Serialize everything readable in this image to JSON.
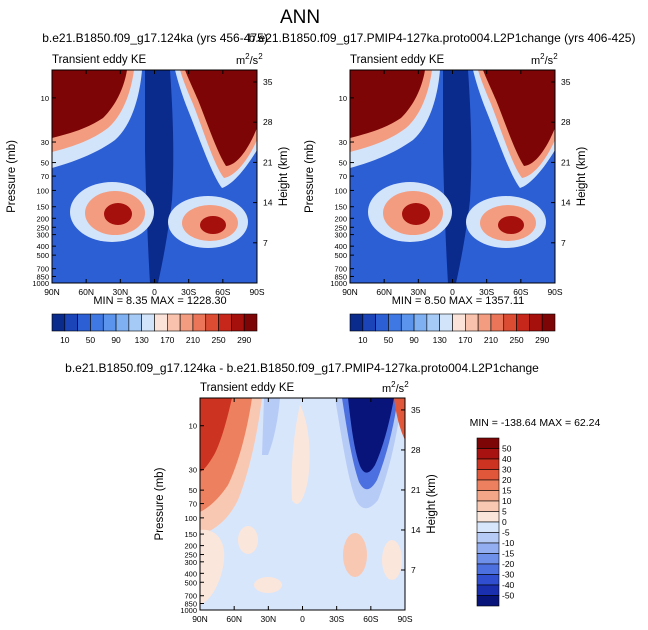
{
  "figure": {
    "title": "ANN",
    "lat_ticks": [
      "90N",
      "60N",
      "30N",
      "0",
      "30S",
      "60S",
      "90S"
    ],
    "pressure_ticks": [
      "10",
      "30",
      "50",
      "70",
      "100",
      "150",
      "200",
      "250",
      "300",
      "400",
      "500",
      "700",
      "850",
      "1000"
    ],
    "height_ticks": [
      "35",
      "28",
      "21",
      "14",
      "7"
    ],
    "pressure_axis_label": "Pressure (mb)",
    "height_axis_label": "Height (km)",
    "variable_label": "Transient eddy KE",
    "units_base": "m",
    "units_sup": "2",
    "units_slash": "/s",
    "units_sup2": "2"
  },
  "chart_data": [
    {
      "type": "heatmap",
      "id": "panel-a",
      "title": "b.e21.B1850.f09_g17.124ka (yrs 456-475)",
      "subtitle_left": "Transient eddy KE",
      "units": "m2/s2",
      "xlabel": "",
      "ylabel": "Pressure (mb)",
      "ylabel_right": "Height (km)",
      "x_range": [
        "90N",
        "90S"
      ],
      "y_range_mb": [
        1000,
        5
      ],
      "min_label": "MIN = 8.35  MAX = 1228.30",
      "colorbar_levels": [
        10,
        30,
        50,
        70,
        90,
        110,
        130,
        150,
        170,
        190,
        210,
        230,
        250,
        270,
        290
      ],
      "colorbar_tick_labels": [
        "10",
        "50",
        "90",
        "130",
        "170",
        "210",
        "250",
        "290"
      ],
      "colors": [
        "#0a2a8c",
        "#1a44b8",
        "#2c5ed4",
        "#3f78e2",
        "#5a94ec",
        "#7eb0f2",
        "#a6caf6",
        "#d2e4fa",
        "#fbe3d9",
        "#f8c2ad",
        "#f39c80",
        "#ea7558",
        "#dc4c33",
        "#c7271a",
        "#a50f0c",
        "#7d0505"
      ]
    },
    {
      "type": "heatmap",
      "id": "panel-b",
      "title": "b.e21.B1850.f09_g17.PMIP4-127ka.proto004.L2P1change (yrs 406-425)",
      "subtitle_left": "Transient eddy KE",
      "units": "m2/s2",
      "xlabel": "",
      "ylabel": "Pressure (mb)",
      "ylabel_right": "Height (km)",
      "x_range": [
        "90N",
        "90S"
      ],
      "y_range_mb": [
        1000,
        5
      ],
      "min_label": "MIN = 8.50  MAX = 1357.11",
      "colorbar_levels": [
        10,
        30,
        50,
        70,
        90,
        110,
        130,
        150,
        170,
        190,
        210,
        230,
        250,
        270,
        290
      ],
      "colorbar_tick_labels": [
        "10",
        "50",
        "90",
        "130",
        "170",
        "210",
        "250",
        "290"
      ],
      "colors": [
        "#0a2a8c",
        "#1a44b8",
        "#2c5ed4",
        "#3f78e2",
        "#5a94ec",
        "#7eb0f2",
        "#a6caf6",
        "#d2e4fa",
        "#fbe3d9",
        "#f8c2ad",
        "#f39c80",
        "#ea7558",
        "#dc4c33",
        "#c7271a",
        "#a50f0c",
        "#7d0505"
      ]
    },
    {
      "type": "heatmap",
      "id": "panel-diff",
      "title": "b.e21.B1850.f09_g17.124ka - b.e21.B1850.f09_g17.PMIP4-127ka.proto004.L2P1change",
      "subtitle_left": "Transient eddy KE",
      "units": "m2/s2",
      "xlabel": "",
      "ylabel": "Pressure (mb)",
      "ylabel_right": "Height (km)",
      "x_range": [
        "90N",
        "90S"
      ],
      "y_range_mb": [
        1000,
        5
      ],
      "min_label": "MIN = -138.64  MAX = 62.24",
      "colorbar_levels": [
        -50,
        -40,
        -30,
        -20,
        -15,
        -10,
        -5,
        0,
        5,
        10,
        15,
        20,
        30,
        40,
        50
      ],
      "colorbar_tick_labels": [
        "50",
        "40",
        "30",
        "20",
        "15",
        "10",
        "5",
        "0",
        "-5",
        "-10",
        "-15",
        "-20",
        "-30",
        "-40",
        "-50"
      ],
      "colors": [
        "#08147a",
        "#1a2fb0",
        "#2f4fd0",
        "#4d70e0",
        "#6e8fea",
        "#93aff2",
        "#b7cbf7",
        "#d7e6fb",
        "#fbe6dc",
        "#f8c8b2",
        "#f3a688",
        "#ec805f",
        "#e0573a",
        "#cc3320",
        "#a81210",
        "#7d0505"
      ]
    }
  ]
}
